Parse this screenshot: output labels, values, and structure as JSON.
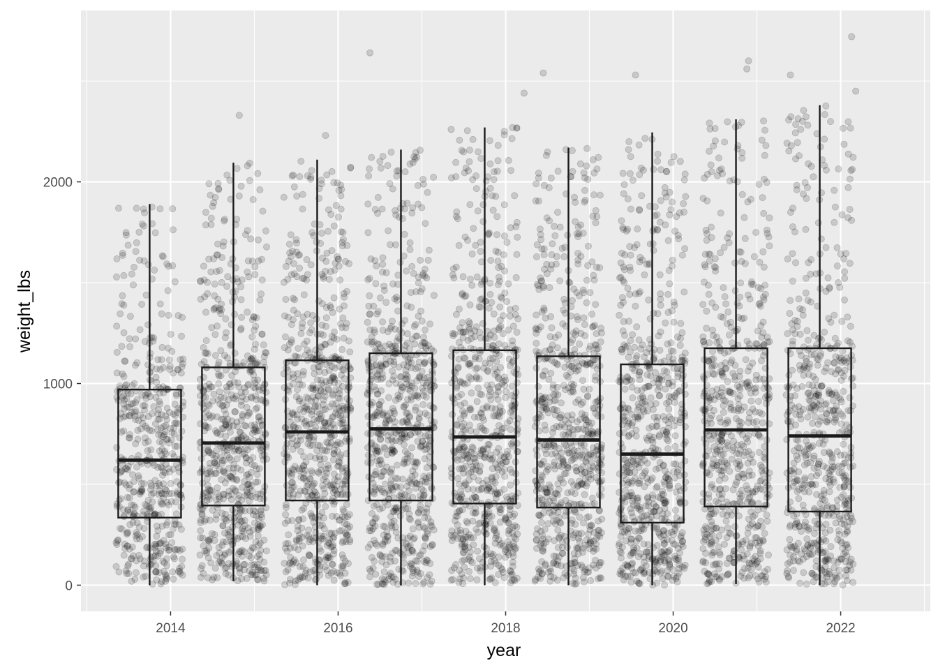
{
  "chart_data": {
    "type": "boxplot",
    "title": "",
    "xlabel": "year",
    "ylabel": "weight_lbs",
    "xlim": [
      2012.93,
      2023.07
    ],
    "ylim": [
      -130,
      2850
    ],
    "x_ticks": [
      2014,
      2016,
      2018,
      2020,
      2022
    ],
    "x_tick_labels": [
      "2014",
      "2016",
      "2018",
      "2020",
      "2022"
    ],
    "y_ticks": [
      0,
      1000,
      2000
    ],
    "y_tick_labels": [
      "0",
      "1000",
      "2000"
    ],
    "grid": true,
    "legend": "none",
    "box_width_years": 0.75,
    "jitter_width_years": 0.4,
    "point_alpha": 0.15,
    "boxes": [
      {
        "x": 2013.75,
        "q1": 335,
        "median": 620,
        "q3": 970,
        "whisker_low": 0,
        "whisker_high": 1890
      },
      {
        "x": 2014.75,
        "q1": 395,
        "median": 705,
        "q3": 1080,
        "whisker_low": 20,
        "whisker_high": 2095
      },
      {
        "x": 2015.75,
        "q1": 420,
        "median": 760,
        "q3": 1115,
        "whisker_low": 0,
        "whisker_high": 2110
      },
      {
        "x": 2016.75,
        "q1": 420,
        "median": 775,
        "q3": 1150,
        "whisker_low": 0,
        "whisker_high": 2160
      },
      {
        "x": 2017.75,
        "q1": 405,
        "median": 735,
        "q3": 1165,
        "whisker_low": 0,
        "whisker_high": 2270
      },
      {
        "x": 2018.75,
        "q1": 385,
        "median": 720,
        "q3": 1135,
        "whisker_low": 0,
        "whisker_high": 2170
      },
      {
        "x": 2019.75,
        "q1": 310,
        "median": 650,
        "q3": 1095,
        "whisker_low": 0,
        "whisker_high": 2245
      },
      {
        "x": 2020.75,
        "q1": 390,
        "median": 770,
        "q3": 1175,
        "whisker_low": 5,
        "whisker_high": 2310
      },
      {
        "x": 2021.75,
        "q1": 365,
        "median": 740,
        "q3": 1175,
        "whisker_low": 0,
        "whisker_high": 2380
      }
    ],
    "outliers": [
      {
        "x": 2016.38,
        "y": 2640
      },
      {
        "x": 2017.35,
        "y": 2260
      },
      {
        "x": 2018.45,
        "y": 2540
      },
      {
        "x": 2018.22,
        "y": 2440
      },
      {
        "x": 2019.55,
        "y": 2530
      },
      {
        "x": 2020.9,
        "y": 2600
      },
      {
        "x": 2020.88,
        "y": 2560
      },
      {
        "x": 2021.4,
        "y": 2530
      },
      {
        "x": 2022.13,
        "y": 2720
      },
      {
        "x": 2022.18,
        "y": 2450
      },
      {
        "x": 2014.82,
        "y": 2330
      },
      {
        "x": 2015.85,
        "y": 2230
      }
    ]
  }
}
